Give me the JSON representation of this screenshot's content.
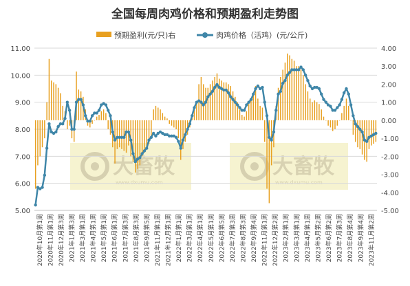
{
  "chart_data": {
    "type": "bar+line",
    "title": "全国每周肉鸡价格和预期盈利走势图",
    "legend": {
      "position": "top",
      "items": [
        {
          "name": "预期盈利(元/只)右",
          "color": "#e8a020",
          "kind": "bar"
        },
        {
          "name": "肉鸡价格（活鸡）(元/公斤)",
          "color": "#3f86a8",
          "kind": "line"
        }
      ]
    },
    "left_axis": {
      "min": 5.0,
      "max": 11.0,
      "ticks": [
        "5.00",
        "6.00",
        "7.00",
        "8.00",
        "9.00",
        "10.00",
        "11.00"
      ]
    },
    "right_axis": {
      "min": -5.0,
      "max": 4.0,
      "ticks": [
        "-5.00",
        "-4.00",
        "-3.00",
        "-2.00",
        "-1.00",
        "0.00",
        "1.00",
        "2.00",
        "3.00",
        "4.00"
      ]
    },
    "grid": true,
    "x_labels": [
      "2020年10月第1周",
      "2020年11月第1周",
      "2020年12月第3周",
      "2021年1月第3周",
      "2021年3月第1周",
      "2021年4月第1周",
      "2021年5月第1周",
      "2021年6月第1周",
      "2021年7月第3周",
      "2021年8月第3周",
      "2021年9月第5周",
      "2021年11月第1周",
      "2021年12月第1周",
      "2022年1月第1周",
      "2022年3月第1周",
      "2022年4月第1周",
      "2022年5月第1周",
      "2022年6月第5周",
      "2022年7月第3周",
      "2022年8月第3周",
      "2022年9月第4周",
      "2022年11月第1周",
      "2022年12月第2周",
      "2023年2月第1周",
      "2023年3月第1周",
      "2023年4月第1周",
      "2023年5月第2周",
      "2023年6月第2周",
      "2023年7月第3周",
      "2023年8月第4周",
      "2023年9月第4周",
      "2023年11月第2周"
    ],
    "price_series": {
      "name": "肉鸡价格（活鸡）(元/公斤)",
      "values": [
        5.2,
        5.85,
        5.8,
        5.85,
        6.3,
        7.3,
        8.2,
        7.9,
        7.85,
        7.9,
        8.1,
        8.2,
        8.2,
        8.4,
        9.0,
        8.7,
        8.0,
        8.0,
        9.0,
        9.1,
        9.1,
        8.9,
        8.5,
        8.3,
        8.3,
        8.5,
        8.6,
        8.6,
        8.7,
        8.9,
        8.95,
        8.9,
        8.7,
        8.5,
        7.9,
        7.6,
        7.7,
        7.7,
        7.7,
        7.7,
        7.9,
        7.9,
        7.6,
        7.1,
        6.8,
        6.9,
        6.95,
        7.1,
        7.2,
        7.3,
        7.6,
        7.7,
        7.85,
        7.75,
        7.85,
        7.9,
        7.85,
        7.8,
        7.8,
        7.75,
        7.75,
        7.75,
        7.7,
        7.55,
        7.3,
        7.6,
        7.8,
        8.0,
        8.2,
        8.5,
        8.8,
        9.0,
        9.05,
        9.0,
        8.9,
        9.0,
        9.2,
        9.3,
        9.4,
        9.55,
        9.65,
        9.55,
        9.5,
        9.45,
        9.45,
        9.35,
        9.2,
        9.1,
        9.0,
        8.9,
        8.8,
        8.7,
        8.7,
        8.9,
        9.0,
        9.1,
        9.3,
        9.5,
        9.6,
        9.5,
        9.55,
        9.0,
        8.5,
        7.7,
        7.6,
        7.9,
        8.7,
        9.3,
        9.4,
        9.7,
        9.8,
        10.0,
        10.1,
        10.2,
        10.2,
        10.2,
        10.2,
        10.3,
        10.2,
        10.0,
        9.8,
        9.6,
        9.5,
        9.55,
        9.55,
        9.5,
        9.3,
        9.1,
        9.0,
        8.9,
        8.85,
        8.7,
        8.7,
        8.8,
        8.9,
        9.1,
        9.35,
        9.5,
        9.3,
        8.9,
        8.5,
        8.2,
        8.1,
        8.0,
        7.9,
        7.6,
        7.55,
        7.7,
        7.75,
        7.8,
        7.85
      ]
    },
    "profit_series": {
      "name": "预期盈利(元/只)右",
      "values": [
        -3.8,
        -2.5,
        -2.0,
        -1.5,
        -1.0,
        1.0,
        3.4,
        2.2,
        2.1,
        2.0,
        1.8,
        1.5,
        0.8,
        0.5,
        -0.5,
        -0.3,
        -1.0,
        -1.2,
        2.7,
        1.7,
        1.6,
        1.3,
        0.6,
        -0.3,
        -0.4,
        -0.2,
        0.0,
        0.2,
        0.3,
        0.5,
        0.6,
        0.4,
        -0.5,
        -0.8,
        -1.5,
        -2.4,
        -1.6,
        -1.5,
        -1.6,
        -1.7,
        -1.8,
        -1.4,
        -2.0,
        -2.3,
        -2.9,
        -2.7,
        -2.5,
        -2.0,
        -1.8,
        -1.5,
        -1.3,
        -1.0,
        0.6,
        0.8,
        0.7,
        0.6,
        0.4,
        0.2,
        0.1,
        -0.2,
        -0.3,
        -0.4,
        -0.5,
        -1.0,
        -2.2,
        -1.6,
        -1.2,
        -0.8,
        -0.4,
        0.2,
        0.6,
        1.0,
        2.0,
        2.4,
        2.0,
        1.8,
        1.8,
        2.0,
        2.2,
        2.4,
        2.6,
        2.3,
        2.2,
        2.1,
        2.1,
        2.0,
        1.9,
        1.6,
        1.3,
        1.0,
        0.6,
        0.3,
        0.2,
        0.5,
        0.9,
        1.2,
        1.5,
        1.9,
        1.2,
        0.8,
        0.7,
        -1.2,
        -3.8,
        -4.6,
        -2.5,
        -1.5,
        0.8,
        1.8,
        2.4,
        2.8,
        3.2,
        3.7,
        3.6,
        3.4,
        3.3,
        3.0,
        3.0,
        2.8,
        2.5,
        2.0,
        1.6,
        1.2,
        1.0,
        1.1,
        1.0,
        0.9,
        0.6,
        0.2,
        0.0,
        -0.3,
        -0.4,
        -0.6,
        -0.5,
        -0.3,
        0.0,
        0.4,
        0.8,
        1.2,
        0.8,
        0.0,
        -0.8,
        -1.2,
        -1.5,
        -1.6,
        -1.9,
        -2.2,
        -2.3,
        -1.6,
        -1.4,
        -1.3,
        -1.2
      ]
    },
    "watermarks": [
      {
        "text": "大畜牧",
        "subtext": "www.dxumu.com"
      },
      {
        "text": "大畜牧",
        "subtext": "www.dxumu.com"
      }
    ],
    "colors": {
      "bar": "#e8a020",
      "line": "#3f86a8",
      "grid": "#d9d9d9",
      "axis_text": "#444444",
      "title": "#333333"
    }
  }
}
